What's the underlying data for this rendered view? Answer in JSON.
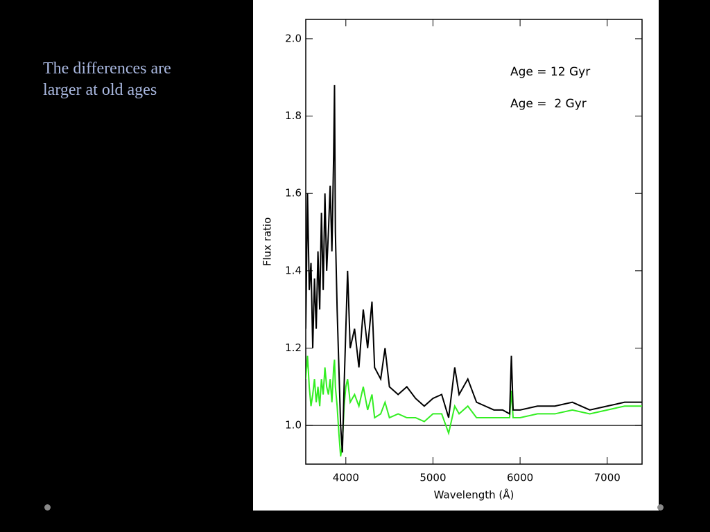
{
  "slide": {
    "text_lines": [
      "The differences are",
      "larger at old ages"
    ]
  },
  "chart_data": {
    "type": "line",
    "xlabel": "Wavelength (Å)",
    "ylabel": "Flux ratio",
    "x": [
      3540,
      3560,
      3580,
      3600,
      3620,
      3640,
      3660,
      3680,
      3700,
      3720,
      3740,
      3760,
      3780,
      3800,
      3820,
      3840,
      3860,
      3870,
      3880,
      3900,
      3920,
      3940,
      3960,
      3980,
      4000,
      4020,
      4050,
      4100,
      4150,
      4200,
      4250,
      4300,
      4330,
      4400,
      4450,
      4500,
      4600,
      4700,
      4800,
      4900,
      5000,
      5100,
      5180,
      5250,
      5300,
      5400,
      5500,
      5600,
      5700,
      5800,
      5880,
      5900,
      5920,
      6000,
      6200,
      6400,
      6600,
      6800,
      7000,
      7200,
      7400
    ],
    "series": [
      {
        "name": "Age = 12 Gyr",
        "color": "#000000",
        "values": [
          1.25,
          1.6,
          1.35,
          1.42,
          1.2,
          1.38,
          1.25,
          1.45,
          1.3,
          1.55,
          1.35,
          1.6,
          1.4,
          1.5,
          1.62,
          1.45,
          1.7,
          1.88,
          1.5,
          1.3,
          1.15,
          1.0,
          0.93,
          1.1,
          1.25,
          1.4,
          1.2,
          1.25,
          1.15,
          1.3,
          1.2,
          1.32,
          1.15,
          1.12,
          1.2,
          1.1,
          1.08,
          1.1,
          1.07,
          1.05,
          1.07,
          1.08,
          1.02,
          1.15,
          1.08,
          1.12,
          1.06,
          1.05,
          1.04,
          1.04,
          1.03,
          1.18,
          1.04,
          1.04,
          1.05,
          1.05,
          1.06,
          1.04,
          1.05,
          1.06,
          1.06
        ]
      },
      {
        "name": "Age =  2 Gyr",
        "color": "#33ee22",
        "values": [
          1.12,
          1.18,
          1.1,
          1.05,
          1.08,
          1.12,
          1.06,
          1.1,
          1.05,
          1.12,
          1.08,
          1.15,
          1.1,
          1.08,
          1.12,
          1.06,
          1.15,
          1.17,
          1.1,
          1.05,
          0.98,
          0.92,
          0.95,
          1.05,
          1.1,
          1.12,
          1.06,
          1.08,
          1.05,
          1.1,
          1.04,
          1.08,
          1.02,
          1.03,
          1.06,
          1.02,
          1.03,
          1.02,
          1.02,
          1.01,
          1.03,
          1.03,
          0.98,
          1.05,
          1.03,
          1.05,
          1.02,
          1.02,
          1.02,
          1.02,
          1.02,
          1.09,
          1.02,
          1.02,
          1.03,
          1.03,
          1.04,
          1.03,
          1.04,
          1.05,
          1.05
        ]
      }
    ],
    "xlim": [
      3540,
      7400
    ],
    "ylim": [
      0.9,
      2.05
    ],
    "xticks": [
      4000,
      5000,
      6000,
      7000
    ],
    "yticks": [
      {
        "value": 1,
        "label": "1.0"
      },
      1.2,
      1.4,
      1.6,
      1.8,
      {
        "value": 2,
        "label": "2.0"
      }
    ],
    "reference_line": 1,
    "legend": "upper right"
  }
}
